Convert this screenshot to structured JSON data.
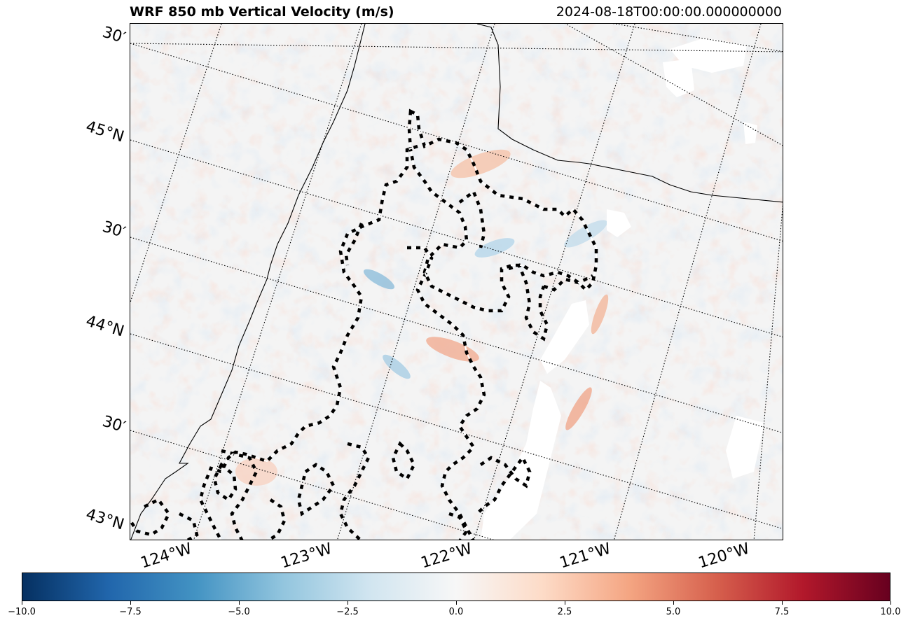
{
  "header": {
    "title": "WRF 850 mb Vertical Velocity (m/s)",
    "timestamp": "2024-08-18T00:00:00.000000000"
  },
  "map": {
    "lat_labels": [
      "30′",
      "45°N",
      "30′",
      "44°N",
      "30′",
      "43°N"
    ],
    "lon_labels": [
      "124°W",
      "123°W",
      "122°W",
      "121°W",
      "120°W"
    ]
  },
  "colorbar": {
    "min": -10.0,
    "max": 10.0,
    "colormap": "RdBu_r",
    "tick_labels": [
      "−10.0",
      "−7.5",
      "−5.0",
      "−2.5",
      "0.0",
      "2.5",
      "5.0",
      "7.5",
      "10.0"
    ],
    "colors": [
      "#053061",
      "#2166ac",
      "#4393c3",
      "#92c5de",
      "#d1e5f0",
      "#f7f7f7",
      "#fddbc7",
      "#f4a582",
      "#d6604d",
      "#b2182b",
      "#67001f"
    ]
  }
}
